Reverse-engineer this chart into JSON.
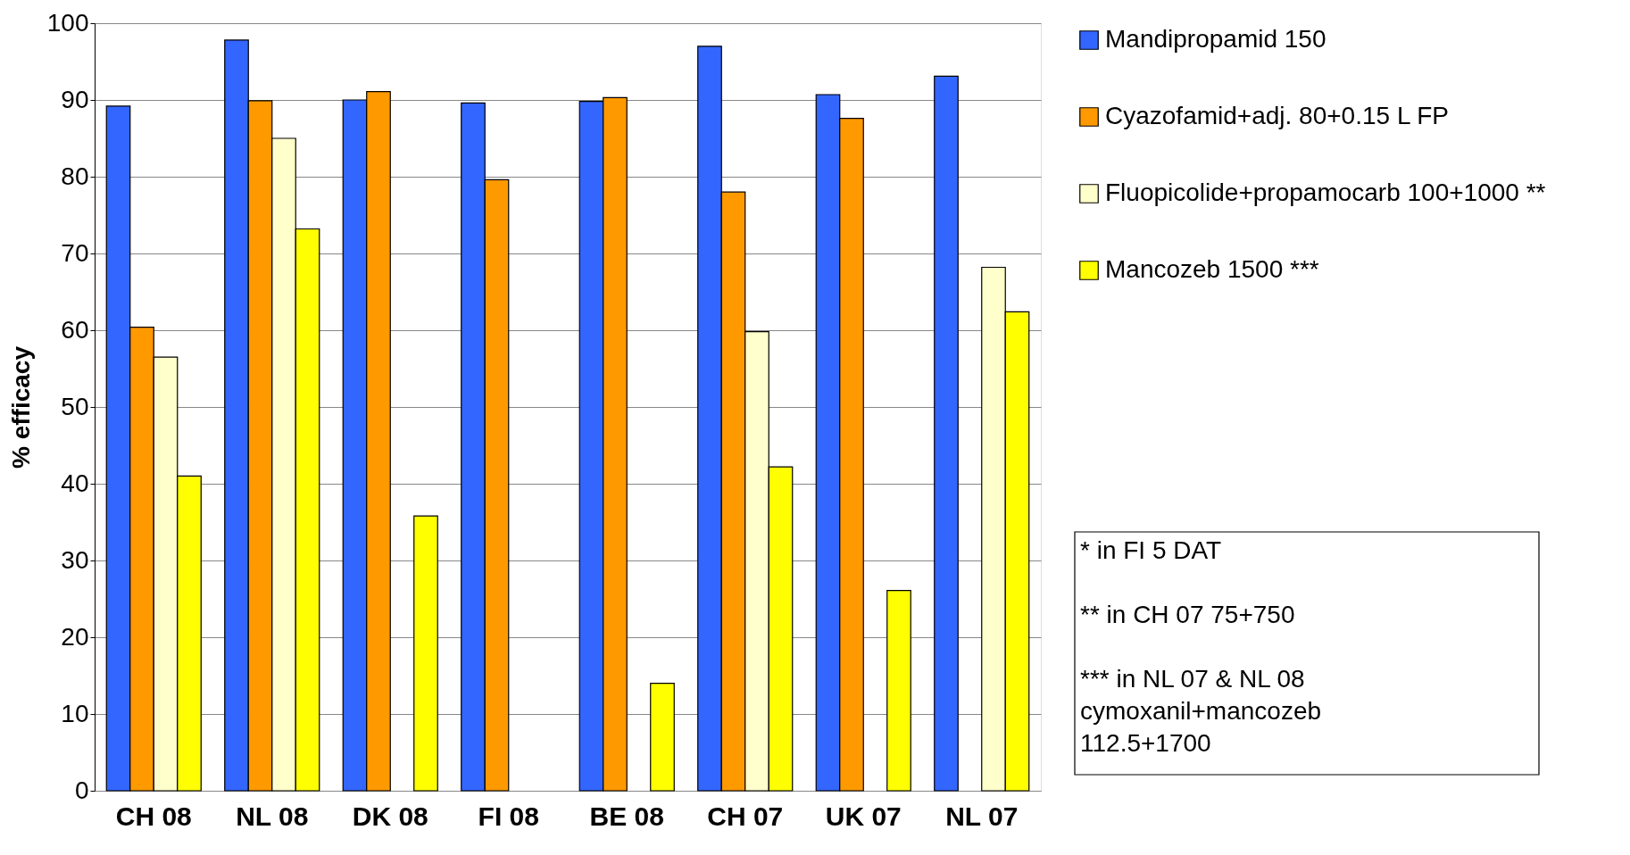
{
  "chart_data": {
    "type": "bar",
    "ylabel": "% efficacy",
    "categories": [
      "CH 08",
      "NL 08",
      "DK 08",
      "FI 08",
      "BE 08",
      "CH 07",
      "UK 07",
      "NL 07"
    ],
    "series": [
      {
        "name": "Mandipropamid 150",
        "color": "#3366ff",
        "values": [
          89.2,
          97.8,
          90.0,
          89.6,
          89.8,
          97.0,
          90.7,
          93.1
        ]
      },
      {
        "name": "Cyazofamid+adj. 80+0.15 L FP",
        "color": "#ff9900",
        "values": [
          60.4,
          89.9,
          91.1,
          79.6,
          90.3,
          78.0,
          87.6,
          null
        ]
      },
      {
        "name": "Fluopicolide+propamocarb 100+1000 **",
        "color": "#ffffcc",
        "values": [
          56.5,
          85.0,
          null,
          null,
          null,
          59.8,
          null,
          68.2
        ]
      },
      {
        "name": "Mancozeb 1500 ***",
        "color": "#ffff00",
        "values": [
          41.0,
          73.2,
          35.8,
          null,
          14.0,
          42.2,
          26.1,
          62.4
        ]
      }
    ],
    "ylim": [
      0,
      100
    ],
    "yticks": [
      0,
      10,
      20,
      30,
      40,
      50,
      60,
      70,
      80,
      90,
      100
    ],
    "grid": "y",
    "legend": "right",
    "annotations": [
      "*  in FI 5 DAT",
      "** in CH 07 75+750",
      "*** in NL 07 & NL 08 cymoxanil+mancozeb 112.5+1700"
    ]
  }
}
